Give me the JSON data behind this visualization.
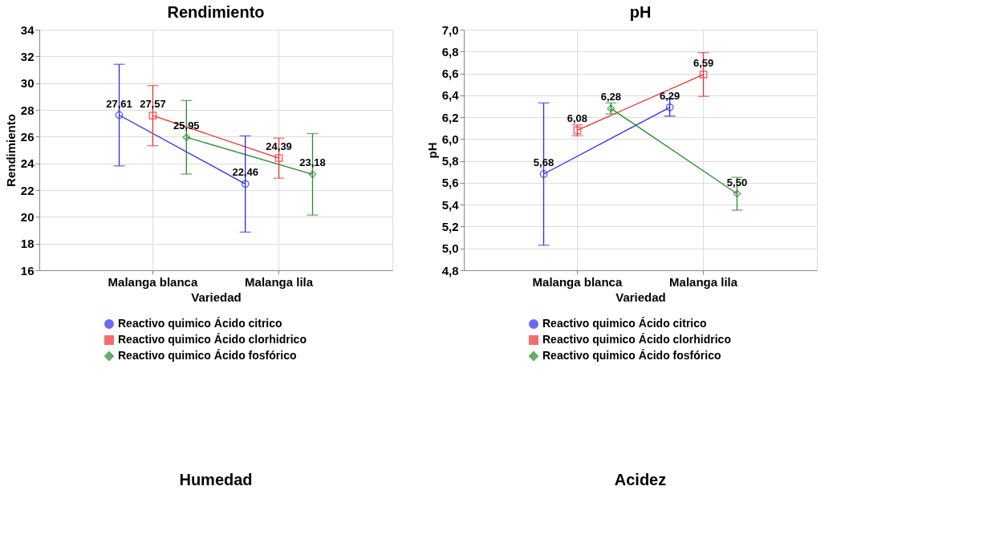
{
  "chart_data": [
    {
      "type": "line",
      "title": "Rendimiento",
      "xlabel": "Variedad",
      "ylabel": "Rendimiento",
      "categories": [
        "Malanga blanca",
        "Malanga lila"
      ],
      "ylim": [
        16,
        34
      ],
      "yticks": [
        16,
        18,
        20,
        22,
        24,
        26,
        28,
        30,
        32,
        34
      ],
      "grid": true,
      "legend": "bottom",
      "line_style": "solid",
      "annotations": [
        "Humedad"
      ],
      "series": [
        {
          "name": "Reactivo quimico Ácido citrico",
          "color": "#2b2bf0",
          "marker": "circle",
          "values": [
            27.61,
            22.46
          ],
          "errors": [
            3.8,
            3.6
          ],
          "value_labels": [
            "27,61",
            "22,46"
          ]
        },
        {
          "name": "Reactivo quimico Ácido clorhidrico",
          "color": "#f03030",
          "marker": "square",
          "values": [
            27.57,
            24.39
          ],
          "errors": [
            2.25,
            1.5
          ],
          "value_labels": [
            "27,57",
            "24,39"
          ]
        },
        {
          "name": "Reactivo quimico Ácido fosfórico",
          "color": "#2a8a2a",
          "marker": "diamond",
          "values": [
            25.95,
            23.18
          ],
          "errors": [
            2.75,
            3.05
          ],
          "value_labels": [
            "25,95",
            "23,18"
          ]
        }
      ]
    },
    {
      "type": "line",
      "title": "pH",
      "xlabel": "Variedad",
      "ylabel": "pH",
      "categories": [
        "Malanga blanca",
        "Malanga lila"
      ],
      "ylim": [
        4.8,
        7.0
      ],
      "yticks": [
        {
          "value": 4.8,
          "label": "4,8"
        },
        {
          "value": 5.0,
          "label": "5,0"
        },
        {
          "value": 5.2,
          "label": "5,2"
        },
        {
          "value": 5.4,
          "label": "5,4"
        },
        {
          "value": 5.6,
          "label": "5,6"
        },
        {
          "value": 5.8,
          "label": "5,8"
        },
        {
          "value": 6.0,
          "label": "6,0"
        },
        {
          "value": 6.2,
          "label": "6,2"
        },
        {
          "value": 6.4,
          "label": "6,4"
        },
        {
          "value": 6.6,
          "label": "6,6"
        },
        {
          "value": 6.8,
          "label": "6,8"
        },
        {
          "value": 7.0,
          "label": "7,0"
        }
      ],
      "grid": true,
      "legend": "bottom",
      "line_style": "solid",
      "annotations": [
        "Acidez"
      ],
      "series": [
        {
          "name": "Reactivo quimico Ácido citrico",
          "color": "#2b2bf0",
          "marker": "circle",
          "values": [
            5.68,
            6.29
          ],
          "errors": [
            0.65,
            0.08
          ],
          "value_labels": [
            "5,68",
            "6,29"
          ]
        },
        {
          "name": "Reactivo quimico Ácido clorhidrico",
          "color": "#f03030",
          "marker": "square",
          "values": [
            6.08,
            6.59
          ],
          "errors": [
            0.05,
            0.2
          ],
          "value_labels": [
            "6,08",
            "6,59"
          ]
        },
        {
          "name": "Reactivo quimico Ácido fosfórico",
          "color": "#2a8a2a",
          "marker": "diamond",
          "values": [
            6.28,
            5.5
          ],
          "errors": [
            0.05,
            0.15
          ],
          "value_labels": [
            "6,28",
            "5,50"
          ]
        }
      ]
    }
  ]
}
